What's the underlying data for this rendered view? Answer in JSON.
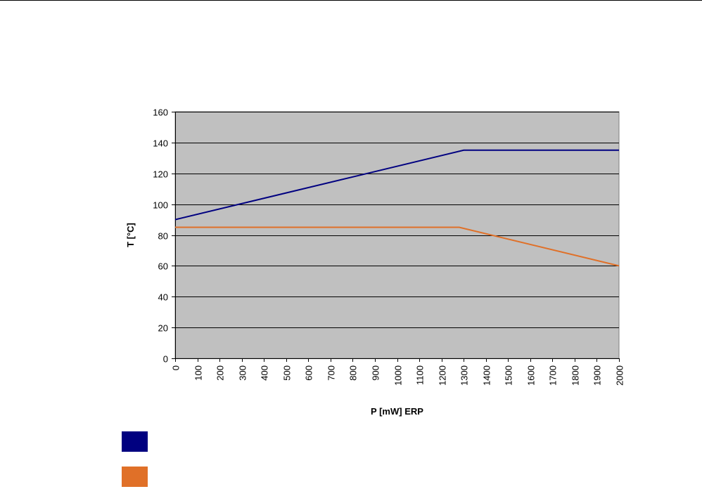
{
  "chart_data": {
    "type": "line",
    "title": "",
    "xlabel": "P [mW] ERP",
    "ylabel": "T [°C]",
    "xlim": [
      0,
      2000
    ],
    "ylim": [
      0,
      160
    ],
    "x_ticks": [
      "0",
      "100",
      "200",
      "300",
      "400",
      "500",
      "600",
      "700",
      "800",
      "900",
      "1000",
      "1100",
      "1200",
      "1300",
      "1400",
      "1500",
      "1600",
      "1700",
      "1800",
      "1900",
      "2000"
    ],
    "y_ticks": [
      "0",
      "20",
      "40",
      "60",
      "80",
      "100",
      "120",
      "140",
      "160"
    ],
    "grid": "horizontal",
    "plot_background": "#c0c0c0",
    "legend_position": "bottom-left",
    "series": [
      {
        "color": "#000080",
        "points": [
          [
            0,
            90
          ],
          [
            1300,
            135
          ],
          [
            2000,
            135
          ]
        ]
      },
      {
        "color": "#e07028",
        "points": [
          [
            0,
            85
          ],
          [
            1280,
            85
          ],
          [
            2000,
            60
          ]
        ]
      }
    ]
  }
}
